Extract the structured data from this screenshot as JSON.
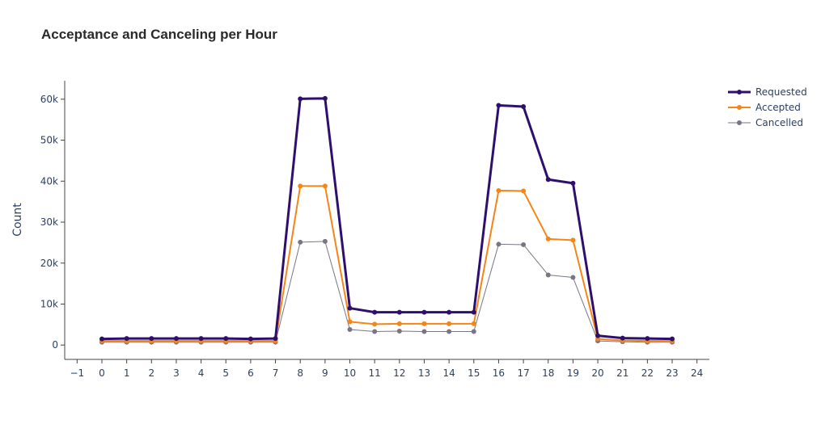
{
  "chart_data": {
    "type": "line",
    "title": "Acceptance and Canceling per Hour",
    "xlabel": "",
    "ylabel": "Count",
    "x": [
      0,
      1,
      2,
      3,
      4,
      5,
      6,
      7,
      8,
      9,
      10,
      11,
      12,
      13,
      14,
      15,
      16,
      17,
      18,
      19,
      20,
      21,
      22,
      23
    ],
    "xlim": [
      -1.5,
      24.5
    ],
    "ylim": [
      -3500,
      64500
    ],
    "xticks": [
      -1,
      0,
      1,
      2,
      3,
      4,
      5,
      6,
      7,
      8,
      9,
      10,
      11,
      12,
      13,
      14,
      15,
      16,
      17,
      18,
      19,
      20,
      21,
      22,
      23,
      24
    ],
    "xtick_labels": [
      "−1",
      "0",
      "1",
      "2",
      "3",
      "4",
      "5",
      "6",
      "7",
      "8",
      "9",
      "10",
      "11",
      "12",
      "13",
      "14",
      "15",
      "16",
      "17",
      "18",
      "19",
      "20",
      "21",
      "22",
      "23",
      "24"
    ],
    "yticks": [
      0,
      10000,
      20000,
      30000,
      40000,
      50000,
      60000
    ],
    "ytick_labels": [
      "0",
      "10k",
      "20k",
      "30k",
      "40k",
      "50k",
      "60k"
    ],
    "grid": false,
    "legend_position": "top-right",
    "series": [
      {
        "name": "Requested",
        "color": "#2e0f6e",
        "values": [
          1500,
          1600,
          1600,
          1600,
          1600,
          1600,
          1500,
          1600,
          60100,
          60200,
          9000,
          8000,
          8000,
          8000,
          8000,
          8000,
          58500,
          58200,
          40400,
          39500,
          2300,
          1700,
          1600,
          1500
        ]
      },
      {
        "name": "Accepted",
        "color": "#f58518",
        "values": [
          1000,
          1000,
          1000,
          1000,
          1000,
          1000,
          1000,
          1000,
          38800,
          38800,
          5700,
          5100,
          5200,
          5200,
          5200,
          5200,
          37700,
          37600,
          25900,
          25600,
          1500,
          1100,
          1000,
          1000
        ]
      },
      {
        "name": "Cancelled",
        "color": "#7a7585",
        "values": [
          700,
          700,
          700,
          700,
          700,
          700,
          700,
          700,
          25100,
          25300,
          3800,
          3300,
          3400,
          3300,
          3300,
          3300,
          24600,
          24500,
          17100,
          16500,
          1000,
          800,
          700,
          700
        ]
      }
    ]
  }
}
